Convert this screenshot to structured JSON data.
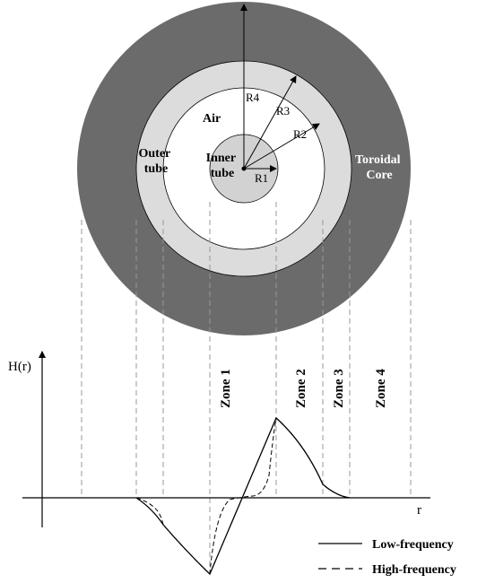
{
  "diagram": {
    "regions": {
      "toroidal_core": "Toroidal Core",
      "outer_tube": "Outer tube",
      "air": "Air",
      "inner_tube": "Inner tube"
    },
    "radii": [
      "R1",
      "R2",
      "R3",
      "R4"
    ],
    "colors": {
      "core": "#6b6b6b",
      "tube": "#dcdcdc",
      "air": "#ffffff",
      "inner": "#d2d2d2"
    }
  },
  "plot": {
    "ylabel": "H(r)",
    "xlabel": "r",
    "zones": [
      "Zone 1",
      "Zone 2",
      "Zone 3",
      "Zone 4"
    ]
  },
  "legend": {
    "low": "Low-frequency",
    "high": "High-frequency"
  }
}
